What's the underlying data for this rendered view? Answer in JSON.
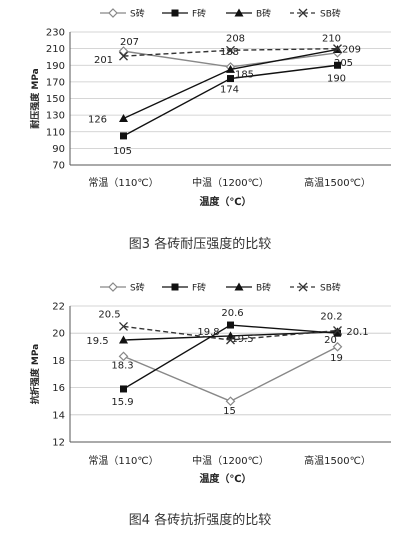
{
  "chart_data": [
    {
      "type": "line",
      "categories": [
        "常温（110℃）",
        "中温（1200℃）",
        "高温1500℃）"
      ],
      "ylabel": "耐压强度 MPa",
      "xlabel": "温度（℃）",
      "caption": "图3  各砖耐压强度的比较",
      "ylim": [
        70,
        230
      ],
      "yticks": [
        70,
        90,
        110,
        130,
        150,
        170,
        190,
        210,
        230
      ],
      "legend_position": "top",
      "series": [
        {
          "name": "S砖",
          "values": [
            207,
            188,
            205
          ],
          "color": "#888888",
          "dash": false,
          "marker": "diamond-open",
          "labels": [
            "207",
            "188",
            "205"
          ]
        },
        {
          "name": "F砖",
          "values": [
            105,
            174,
            190
          ],
          "color": "#111111",
          "dash": false,
          "marker": "square",
          "labels": [
            "105",
            "174",
            "190"
          ]
        },
        {
          "name": "B砖",
          "values": [
            126,
            185,
            209
          ],
          "color": "#111111",
          "dash": false,
          "marker": "triangle",
          "labels": [
            "126",
            "185",
            "209"
          ]
        },
        {
          "name": "SB砖",
          "values": [
            201,
            208,
            210
          ],
          "color": "#333333",
          "dash": true,
          "marker": "x",
          "labels": [
            "201",
            "208",
            "210"
          ]
        }
      ]
    },
    {
      "type": "line",
      "categories": [
        "常温（110℃）",
        "中温（1200℃）",
        "高温1500℃）"
      ],
      "ylabel": "抗折强度 MPa",
      "xlabel": "温度（℃）",
      "caption": "图4  各砖抗折强度的比较",
      "ylim": [
        12,
        22
      ],
      "yticks": [
        12,
        14,
        16,
        18,
        20,
        22
      ],
      "legend_position": "top",
      "series": [
        {
          "name": "S砖",
          "values": [
            18.3,
            15,
            19
          ],
          "color": "#888888",
          "dash": false,
          "marker": "diamond-open",
          "labels": [
            "18.3",
            "15",
            "19"
          ]
        },
        {
          "name": "F砖",
          "values": [
            15.9,
            20.6,
            20
          ],
          "color": "#111111",
          "dash": false,
          "marker": "square",
          "labels": [
            "15.9",
            "20.6",
            "20"
          ]
        },
        {
          "name": "B砖",
          "values": [
            19.5,
            19.8,
            20.1
          ],
          "color": "#111111",
          "dash": false,
          "marker": "triangle",
          "labels": [
            "19.5",
            "19.8",
            "20.1"
          ]
        },
        {
          "name": "SB砖",
          "values": [
            20.5,
            19.5,
            20.2
          ],
          "color": "#333333",
          "dash": true,
          "marker": "x",
          "labels": [
            "20.5",
            "19.5",
            "20.2"
          ]
        }
      ]
    }
  ]
}
